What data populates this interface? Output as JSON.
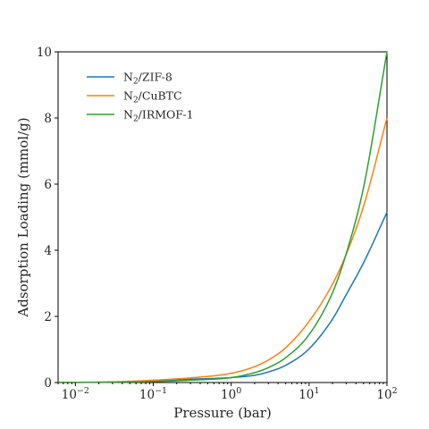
{
  "chart_data": {
    "type": "line",
    "title": "",
    "xlabel": "Pressure (bar)",
    "ylabel": "Adsorption Loading (mmol/g)",
    "xscale": "log",
    "xlim": [
      0.006,
      100
    ],
    "ylim": [
      0,
      10
    ],
    "grid": false,
    "legend_position": "top-left",
    "x_ticks": [
      {
        "value": 0.01,
        "base": "10",
        "exp": "−2"
      },
      {
        "value": 0.1,
        "base": "10",
        "exp": "−1"
      },
      {
        "value": 1,
        "base": "10",
        "exp": "0"
      },
      {
        "value": 10,
        "base": "10",
        "exp": "1"
      },
      {
        "value": 100,
        "base": "10",
        "exp": "2"
      }
    ],
    "y_ticks": [
      {
        "value": 0,
        "label": "0"
      },
      {
        "value": 2,
        "label": "2"
      },
      {
        "value": 4,
        "label": "4"
      },
      {
        "value": 6,
        "label": "6"
      },
      {
        "value": 8,
        "label": "8"
      },
      {
        "value": 10,
        "label": "10"
      }
    ],
    "series": [
      {
        "name_prefix": "N",
        "name_sub": "2",
        "name_suffix": "/ZIF-8",
        "color": "#1f77b4",
        "x": [
          0.006,
          0.01,
          0.03,
          0.1,
          0.3,
          1,
          2,
          3,
          5,
          10,
          20,
          30,
          50,
          100
        ],
        "y": [
          0.003,
          0.005,
          0.015,
          0.05,
          0.1,
          0.15,
          0.22,
          0.32,
          0.52,
          1.02,
          1.92,
          2.66,
          3.62,
          5.15
        ]
      },
      {
        "name_prefix": "N",
        "name_sub": "2",
        "name_suffix": "/CuBTC",
        "color": "#ff7f0e",
        "x": [
          0.006,
          0.01,
          0.03,
          0.1,
          0.3,
          1,
          2,
          3,
          5,
          10,
          20,
          30,
          50,
          100
        ],
        "y": [
          0.004,
          0.007,
          0.02,
          0.07,
          0.14,
          0.28,
          0.48,
          0.68,
          1.05,
          1.85,
          2.98,
          3.88,
          5.33,
          8.0
        ]
      },
      {
        "name_prefix": "N",
        "name_sub": "2",
        "name_suffix": "/IRMOF-1",
        "color": "#2ca02c",
        "x": [
          0.006,
          0.01,
          0.03,
          0.1,
          0.3,
          1,
          2,
          3,
          5,
          10,
          20,
          30,
          50,
          100
        ],
        "y": [
          0.002,
          0.004,
          0.01,
          0.03,
          0.07,
          0.15,
          0.3,
          0.45,
          0.75,
          1.45,
          2.72,
          3.9,
          5.9,
          10.0
        ]
      }
    ]
  }
}
